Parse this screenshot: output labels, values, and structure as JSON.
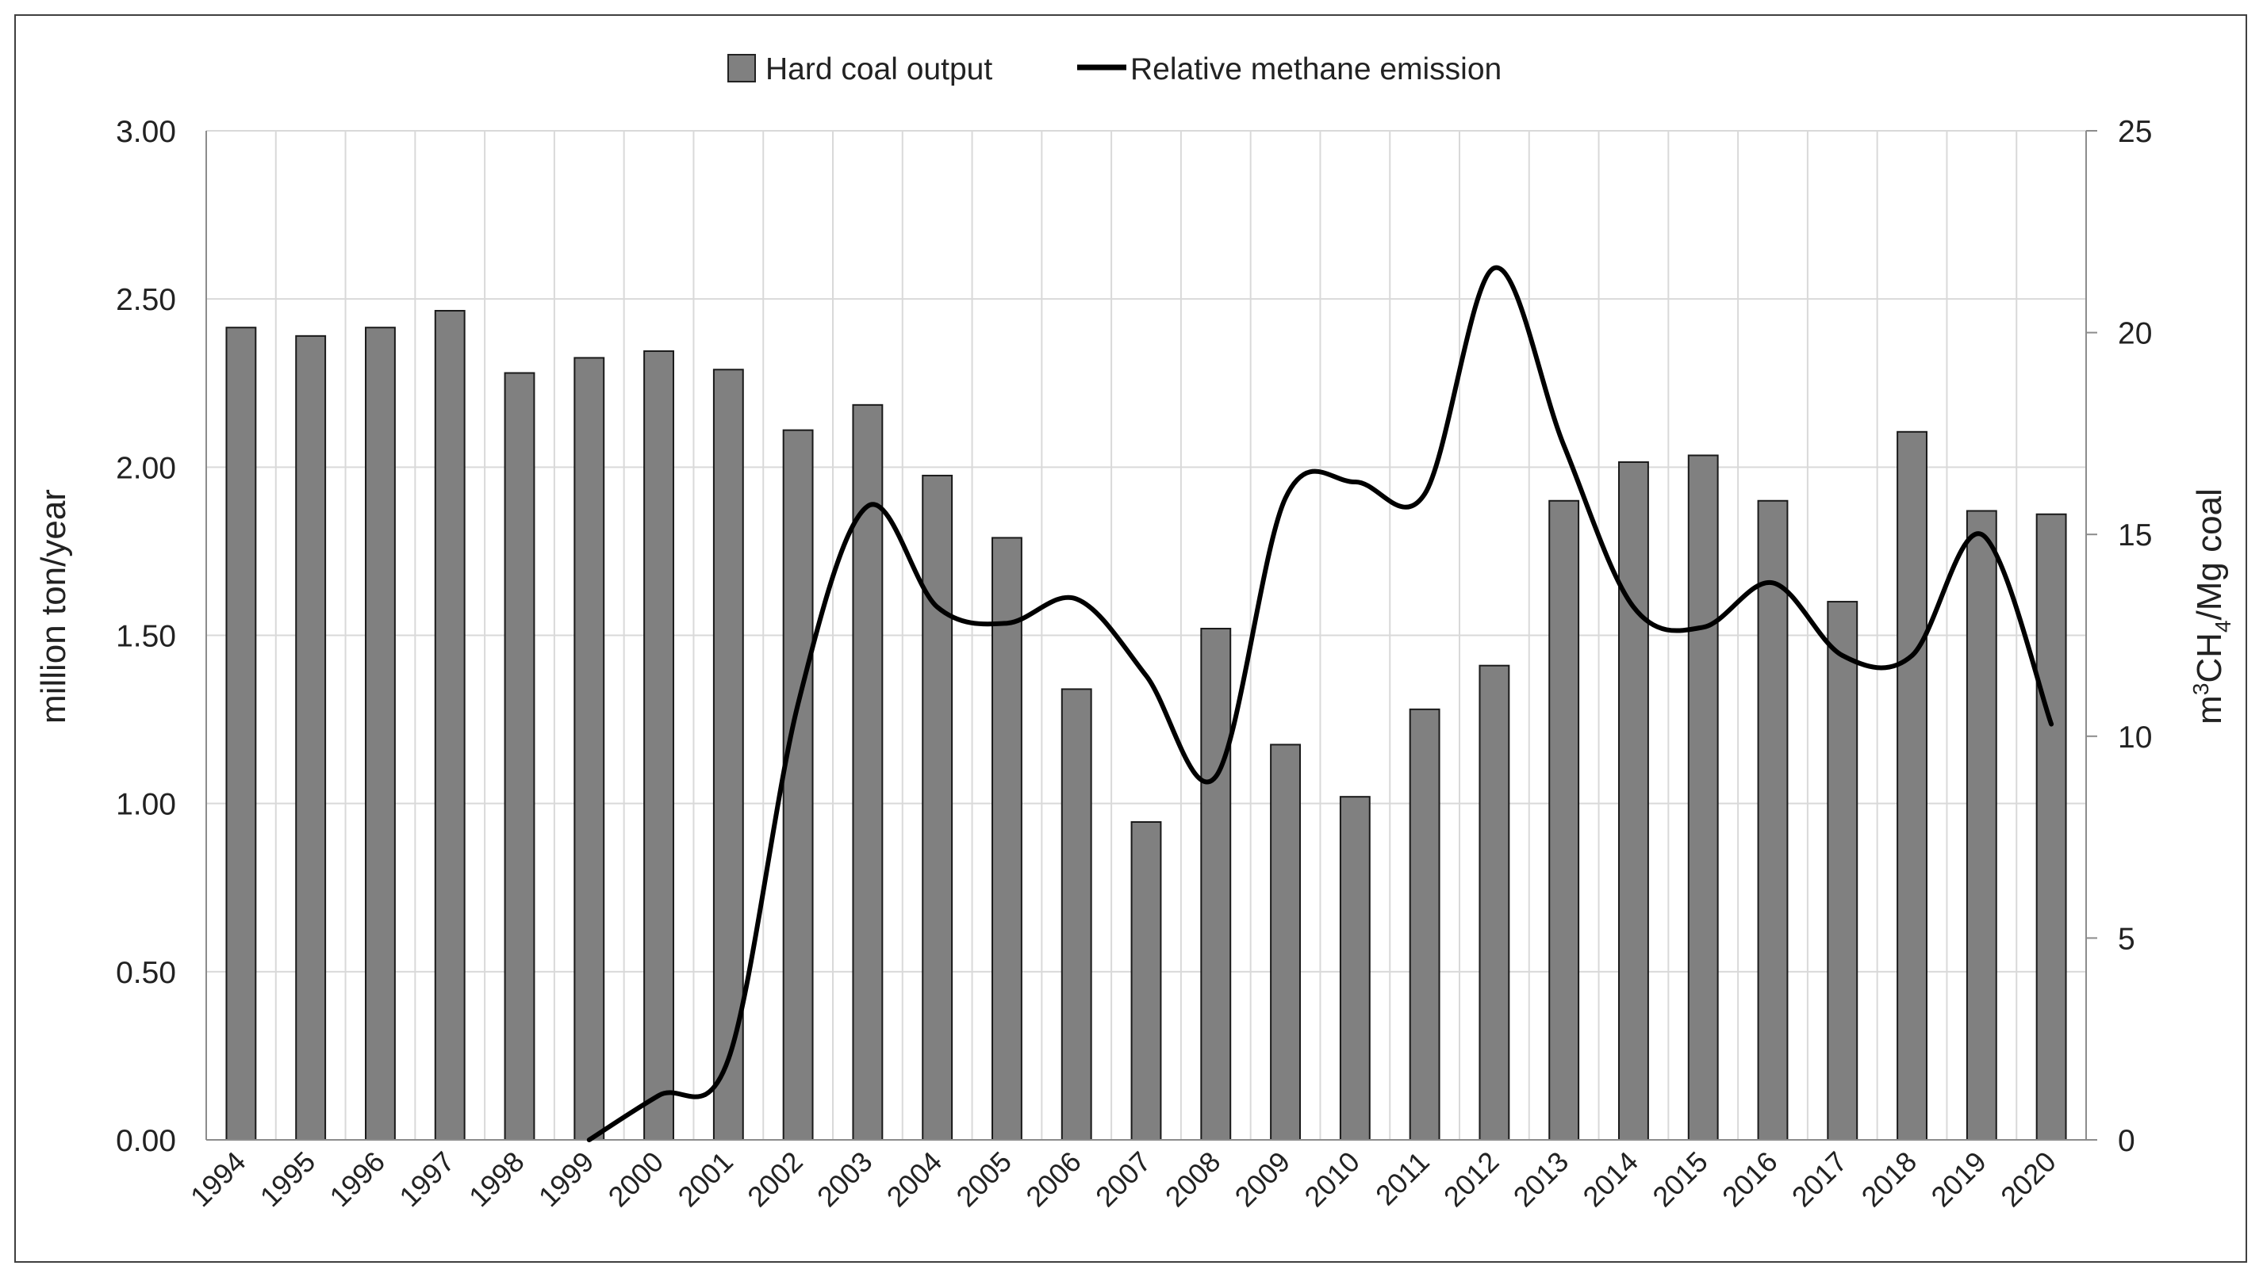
{
  "chart_data": {
    "type": "bar+line",
    "categories": [
      "1994",
      "1995",
      "1996",
      "1997",
      "1998",
      "1999",
      "2000",
      "2001",
      "2002",
      "2003",
      "2004",
      "2005",
      "2006",
      "2007",
      "2008",
      "2009",
      "2010",
      "2011",
      "2012",
      "2013",
      "2014",
      "2015",
      "2016",
      "2017",
      "2018",
      "2019",
      "2020"
    ],
    "series": [
      {
        "name": "Hard coal output",
        "type": "bar",
        "axis": "left",
        "color": "#808080",
        "values": [
          2.415,
          2.39,
          2.415,
          2.465,
          2.28,
          2.325,
          2.345,
          2.29,
          2.11,
          2.185,
          1.975,
          1.79,
          1.34,
          0.945,
          1.52,
          1.175,
          1.02,
          1.28,
          1.41,
          1.9,
          2.015,
          2.035,
          1.9,
          1.6,
          2.105,
          1.87,
          1.86
        ]
      },
      {
        "name": "Relative methane emission",
        "type": "line",
        "axis": "right",
        "color": "#000000",
        "x": [
          "1999",
          "2000",
          "2001",
          "2002",
          "2003",
          "2004",
          "2005",
          "2006",
          "2007",
          "2008",
          "2009",
          "2010",
          "2011",
          "2012",
          "2013",
          "2014",
          "2015",
          "2016",
          "2017",
          "2018",
          "2019",
          "2020"
        ],
        "values": [
          0,
          1.1,
          2.0,
          10.8,
          15.7,
          13.2,
          12.8,
          13.4,
          11.5,
          9.0,
          15.9,
          16.3,
          16.0,
          21.6,
          17.2,
          13.2,
          12.7,
          13.8,
          12.0,
          12.0,
          15.0,
          10.3
        ]
      }
    ],
    "ylabel_left": "million ton/year",
    "ylabel_right_parts": [
      "m",
      "3",
      "CH",
      "4",
      "/Mg coal"
    ],
    "ylim_left": [
      0,
      3
    ],
    "ylim_right": [
      0,
      25
    ],
    "yticks_left": [
      "0.00",
      "0.50",
      "1.00",
      "1.50",
      "2.00",
      "2.50",
      "3.00"
    ],
    "yticks_left_values": [
      0,
      0.5,
      1,
      1.5,
      2,
      2.5,
      3
    ],
    "yticks_right": [
      "0",
      "5",
      "10",
      "15",
      "20",
      "25"
    ],
    "yticks_right_values": [
      0,
      5,
      10,
      15,
      20,
      25
    ],
    "grid": true,
    "legend_position": "top-center"
  }
}
